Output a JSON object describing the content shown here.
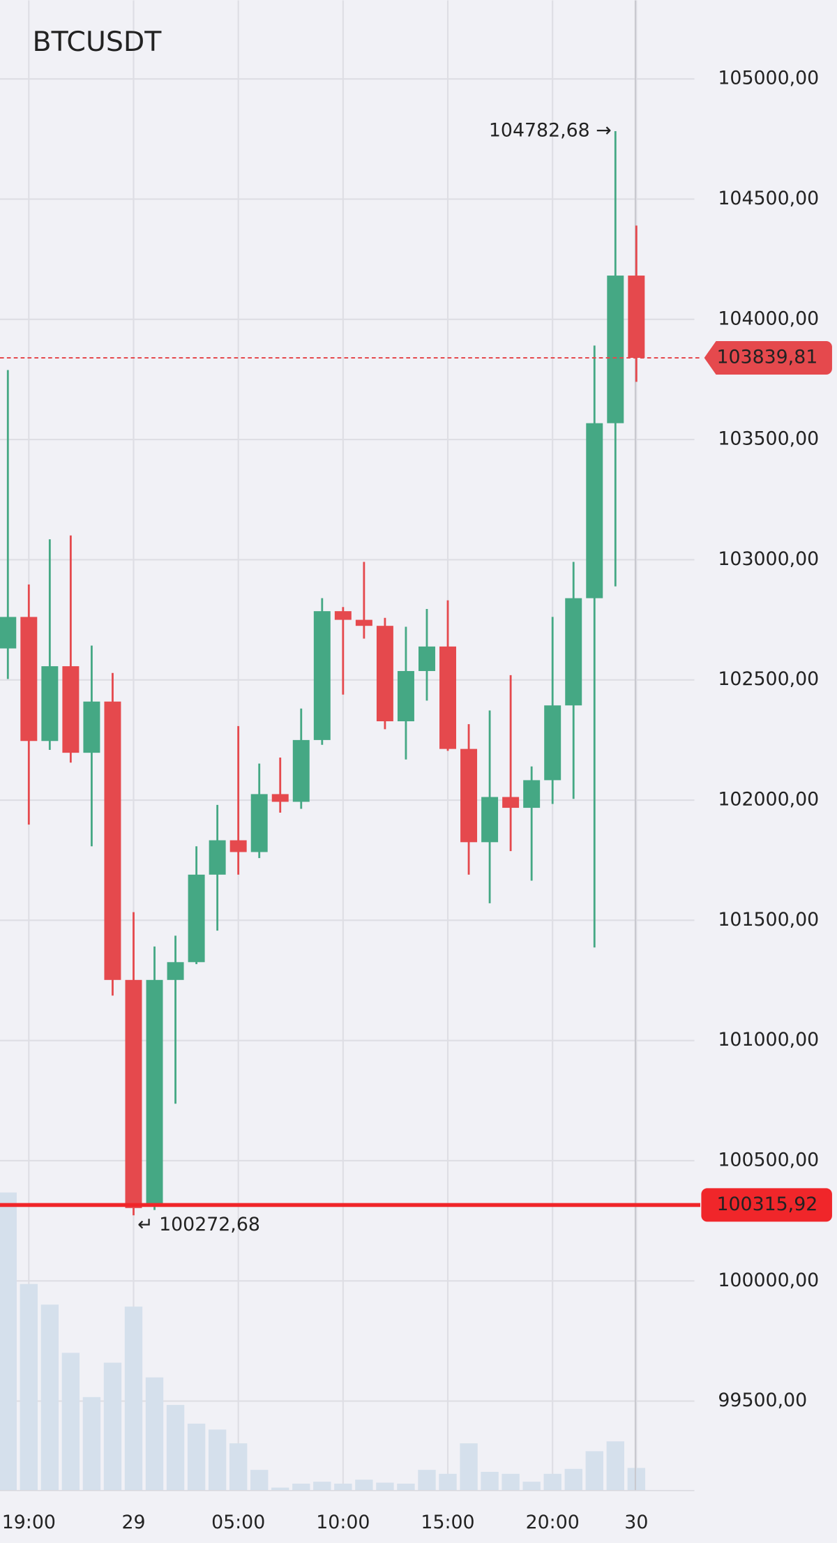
{
  "chart_data": {
    "type": "candlestick",
    "title": "BTCUSDT",
    "categories": [
      null,
      "19:00",
      null,
      null,
      null,
      null,
      "29",
      null,
      null,
      null,
      null,
      "05:00",
      null,
      null,
      null,
      null,
      "10:00",
      null,
      null,
      null,
      null,
      "15:00",
      null,
      null,
      null,
      null,
      "20:00",
      null,
      null,
      null,
      "30"
    ],
    "open": [
      102631,
      102762,
      102246,
      102557,
      102197,
      102410,
      101252,
      100311,
      101252,
      101326,
      101690,
      101833,
      101784,
      102025,
      101993,
      102250,
      102786,
      102750,
      102725,
      102328,
      102537,
      102639,
      102213,
      101825,
      102013,
      101968,
      102083,
      102394,
      102840,
      103568,
      104182
    ],
    "high": [
      103789,
      102897,
      103085,
      103101,
      102643,
      102529,
      101534,
      101391,
      101436,
      101808,
      101980,
      102308,
      102152,
      102177,
      102381,
      102840,
      102803,
      102991,
      102758,
      102721,
      102795,
      102831,
      102316,
      102373,
      102520,
      102140,
      102762,
      102991,
      103891,
      104782.68,
      104390
    ],
    "low": [
      102504,
      101898,
      102209,
      102156,
      101808,
      101187,
      100272.68,
      100295,
      100737,
      101318,
      101457,
      101690,
      101759,
      101948,
      101964,
      102230,
      102439,
      102672,
      102295,
      102169,
      102414,
      102205,
      101690,
      101571,
      101788,
      101665,
      101984,
      102005,
      101387,
      102889,
      103740
    ],
    "close": [
      102762,
      102246,
      102557,
      102197,
      102410,
      101252,
      100303,
      101252,
      101326,
      101690,
      101833,
      101784,
      102025,
      101993,
      102250,
      102786,
      102750,
      102725,
      102328,
      102537,
      102639,
      102213,
      101825,
      102013,
      101968,
      102083,
      102394,
      102840,
      103568,
      104182,
      103839.81
    ],
    "volume": [
      303,
      210,
      189,
      140,
      95,
      130,
      187,
      115,
      87,
      68,
      62,
      48,
      21,
      3,
      7,
      9,
      7,
      11,
      8,
      7,
      21,
      17,
      48,
      19,
      17,
      9,
      17,
      22,
      40,
      50,
      23
    ],
    "up_color": "#45a884",
    "down_color": "#e5494d",
    "volume_color": "#d5e0ec",
    "ylim": [
      99128,
      105327
    ],
    "yticks": [
      {
        "value": 105000,
        "label": "105000,00"
      },
      {
        "value": 104500,
        "label": "104500,00"
      },
      {
        "value": 104000,
        "label": "104000,00"
      },
      {
        "value": 103500,
        "label": "103500,00"
      },
      {
        "value": 103000,
        "label": "103000,00"
      },
      {
        "value": 102500,
        "label": "102500,00"
      },
      {
        "value": 102000,
        "label": "102000,00"
      },
      {
        "value": 101500,
        "label": "101500,00"
      },
      {
        "value": 101000,
        "label": "101000,00"
      },
      {
        "value": 100500,
        "label": "100500,00"
      },
      {
        "value": 100000,
        "label": "100000,00"
      },
      {
        "value": 99500,
        "label": "99500,00"
      }
    ],
    "grid": true,
    "annotations": [
      {
        "label": "104782,68 →",
        "value": 104782.68,
        "index": 29,
        "side": "left"
      },
      {
        "label": "↵ 100272,68",
        "value": 100272.68,
        "index": 6,
        "side": "right"
      }
    ],
    "price_lines": [
      {
        "value": 103839.81,
        "label": "103839,81",
        "style": "dashed",
        "color": "#e5494d"
      },
      {
        "value": 100315.92,
        "label": "100315,92",
        "style": "solid",
        "color": "#f0262a"
      }
    ]
  }
}
